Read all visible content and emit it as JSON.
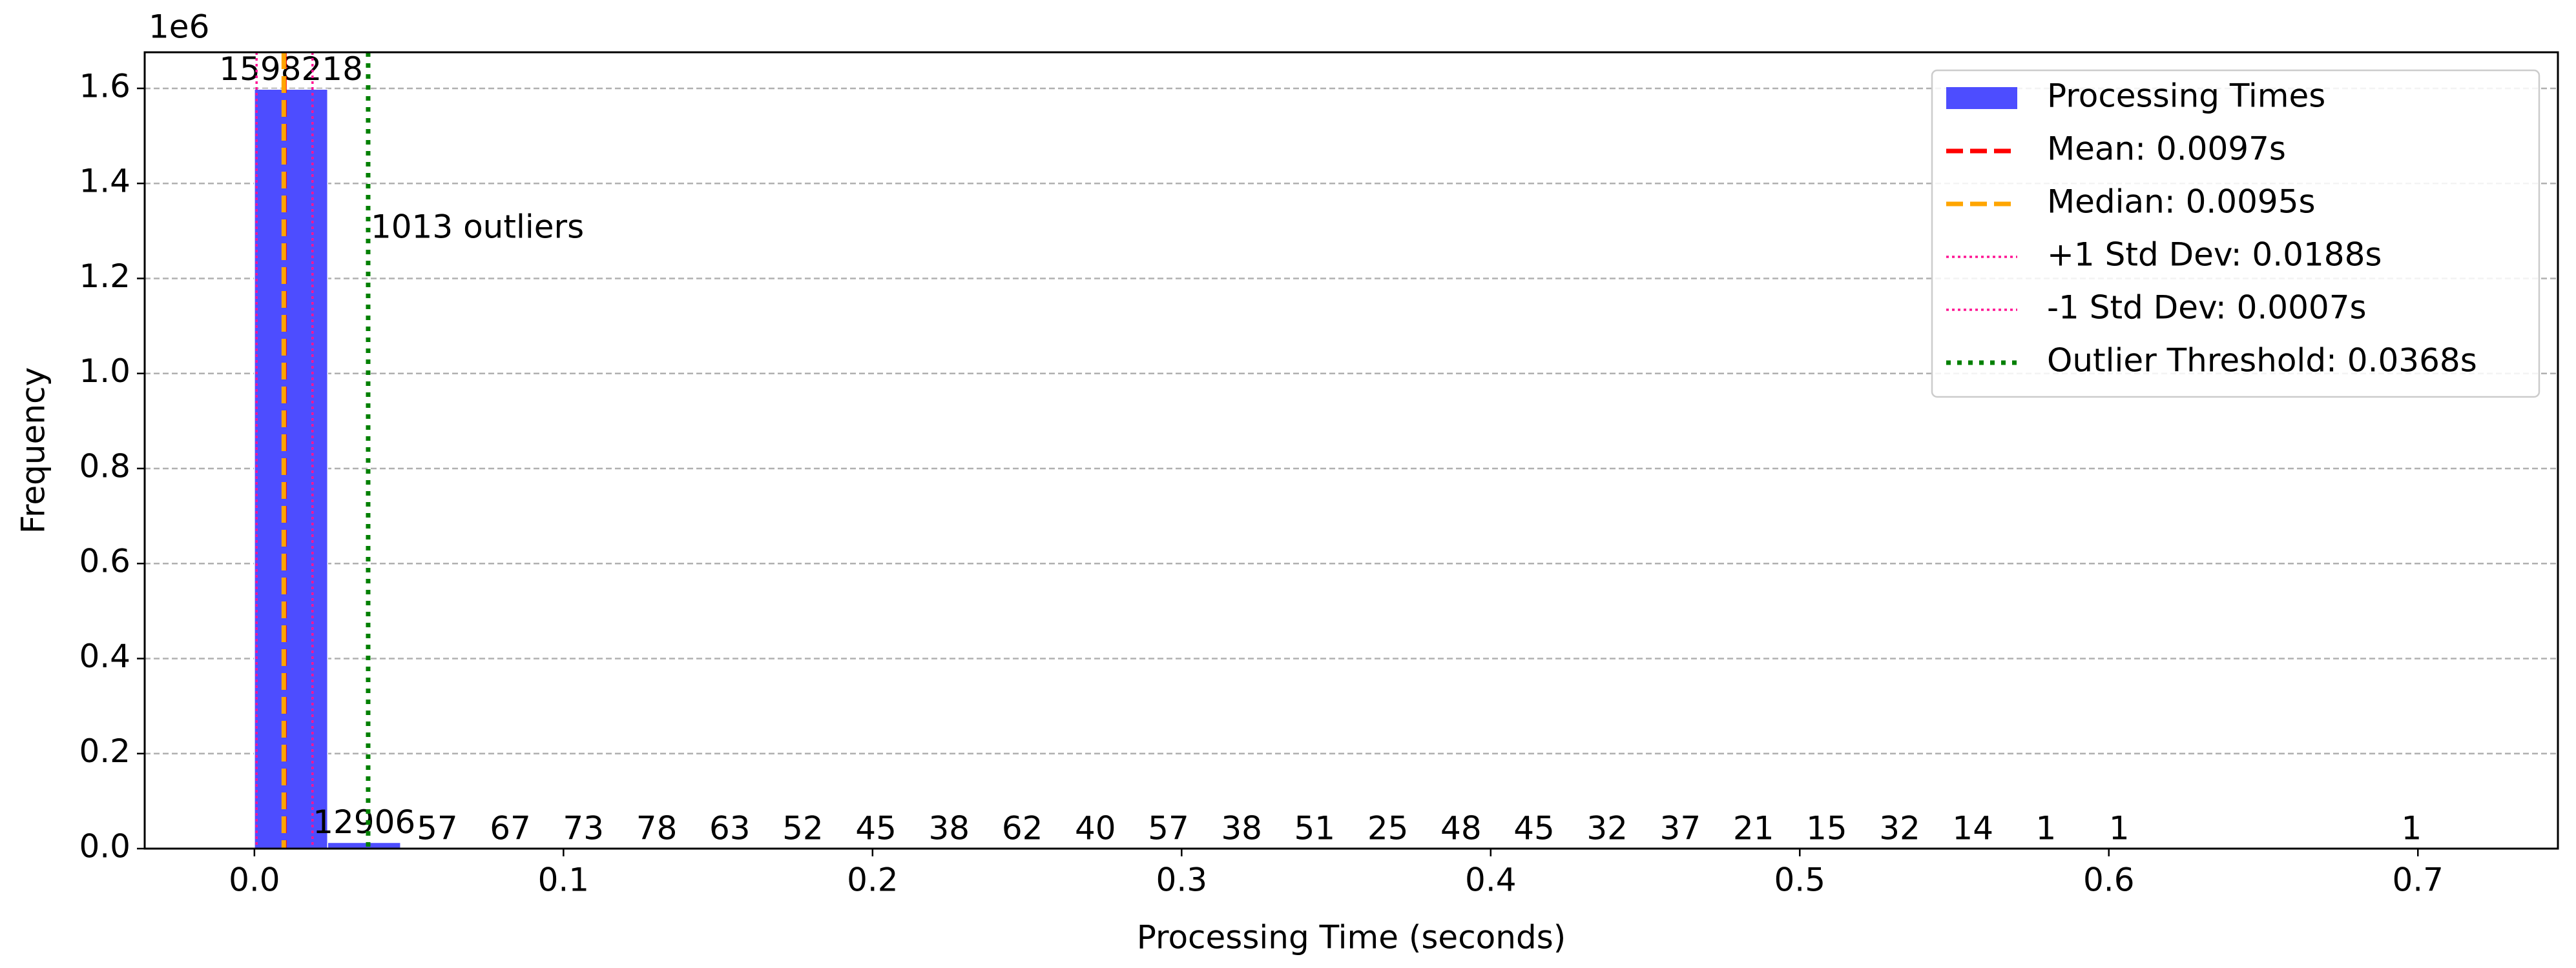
{
  "chart_data": {
    "type": "histogram",
    "xlabel": "Processing Time (seconds)",
    "ylabel": "Frequency",
    "y_offset_text": "1e6",
    "bins": [
      0,
      0.0237,
      0.0473,
      0.071,
      0.0946,
      0.1183,
      0.142,
      0.1656,
      0.1893,
      0.2129,
      0.2366,
      0.2603,
      0.2839,
      0.3076,
      0.3312,
      0.3549,
      0.3786,
      0.4022,
      0.4259,
      0.4495,
      0.4732,
      0.4969,
      0.5205,
      0.5442,
      0.5678,
      0.5915,
      0.6152,
      0.6388,
      0.6625,
      0.6861,
      0.7098
    ],
    "series": [
      {
        "name": "Processing Times",
        "color": "#4d4dff",
        "values": [
          1598218,
          12906,
          57,
          67,
          73,
          78,
          63,
          52,
          45,
          38,
          62,
          40,
          57,
          38,
          51,
          25,
          48,
          45,
          32,
          37,
          21,
          15,
          32,
          14,
          1,
          1,
          0,
          0,
          0,
          1
        ]
      }
    ],
    "reference_lines": [
      {
        "name": "Mean: 0.0097s",
        "value": 0.0097,
        "color": "#ff0000",
        "style": "dashed"
      },
      {
        "name": "Median: 0.0095s",
        "value": 0.0095,
        "color": "#ffa500",
        "style": "dashed"
      },
      {
        "name": "+1 Std Dev: 0.0188s",
        "value": 0.0188,
        "color": "#ff1493",
        "style": "dotted"
      },
      {
        "name": "-1 Std Dev: 0.0007s",
        "value": 0.0007,
        "color": "#ff1493",
        "style": "dotted"
      },
      {
        "name": "Outlier Threshold: 0.0368s",
        "value": 0.0368,
        "color": "#008000",
        "style": "dotted-bold"
      }
    ],
    "annotation": "1013 outliers",
    "xlim": [
      -0.0355,
      0.7453
    ],
    "ylim": [
      0,
      1676000
    ],
    "xticks": [
      {
        "value": 0,
        "label": "0.0"
      },
      0.1,
      0.2,
      0.3,
      0.4,
      0.5,
      0.6,
      0.7
    ],
    "yticks": [
      {
        "value": 0,
        "label": "0.0"
      },
      {
        "value": 200000,
        "label": "0.2"
      },
      {
        "value": 400000,
        "label": "0.4"
      },
      {
        "value": 600000,
        "label": "0.6"
      },
      {
        "value": 800000,
        "label": "0.8"
      },
      {
        "value": 1000000,
        "label": "1.0"
      },
      {
        "value": 1200000,
        "label": "1.2"
      },
      {
        "value": 1400000,
        "label": "1.4"
      },
      {
        "value": 1600000,
        "label": "1.6"
      }
    ],
    "grid": true,
    "legend": "upper right"
  }
}
